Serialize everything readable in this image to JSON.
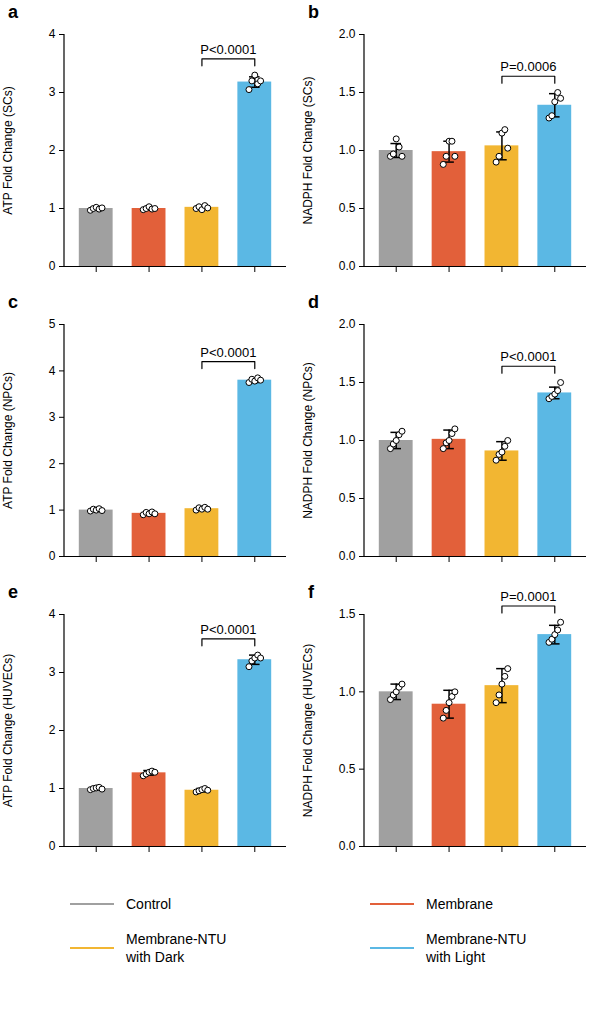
{
  "chart_data": [
    {
      "type": "bar",
      "title": "a",
      "ylabel": "ATP Fold Change (SCs)",
      "categories": [
        null,
        null,
        null,
        null
      ],
      "ylim": [
        0,
        4
      ],
      "yticks": [
        0,
        1,
        2,
        3,
        4
      ],
      "legend": "bottom",
      "series": [
        {
          "name": "Control",
          "color": "#a0a0a0",
          "values": [
            1.0,
            null,
            null,
            null
          ],
          "error": [
            0.02,
            null,
            null,
            null
          ],
          "points": [
            [
              0.97,
              1.0,
              1.02,
              0.99,
              1.01
            ],
            null,
            null,
            null
          ]
        },
        {
          "name": "Membrane",
          "color": "#e2603a",
          "values": [
            null,
            1.0,
            null,
            null
          ],
          "error": [
            null,
            0.02,
            null,
            null
          ],
          "points": [
            null,
            [
              0.98,
              1.0,
              1.03,
              0.99,
              1.0
            ],
            null,
            null
          ]
        },
        {
          "name": "Membrane-NTU with Dark",
          "color": "#f2b632",
          "values": [
            null,
            null,
            1.02,
            null
          ],
          "error": [
            null,
            null,
            0.03,
            null
          ],
          "points": [
            null,
            null,
            [
              1.0,
              1.03,
              0.98,
              1.05,
              1.01
            ],
            null
          ]
        },
        {
          "name": "Membrane-NTU with Light",
          "color": "#5bb8e4",
          "values": [
            null,
            null,
            null,
            3.18
          ],
          "error": [
            null,
            null,
            null,
            0.09
          ],
          "points": [
            null,
            null,
            null,
            [
              3.05,
              3.2,
              3.3,
              3.15,
              3.2
            ]
          ]
        }
      ],
      "annotations": [
        {
          "text": "P<0.0001",
          "between": [
            2,
            3
          ]
        }
      ]
    },
    {
      "type": "bar",
      "title": "b",
      "ylabel": "NADPH Fold Change (SCs)",
      "categories": [
        null,
        null,
        null,
        null
      ],
      "ylim": [
        0,
        2
      ],
      "yticks": [
        {
          "value": 0,
          "label": "0.0"
        },
        0.5,
        {
          "value": 1,
          "label": "1.0"
        },
        1.5,
        {
          "value": 2,
          "label": "2.0"
        }
      ],
      "legend": "bottom",
      "series": [
        {
          "name": "Control",
          "color": "#a0a0a0",
          "values": [
            1.0,
            null,
            null,
            null
          ],
          "error": [
            0.06,
            null,
            null,
            null
          ],
          "points": [
            [
              0.95,
              0.97,
              1.1,
              1.03,
              0.95
            ],
            null,
            null,
            null
          ]
        },
        {
          "name": "Membrane",
          "color": "#e2603a",
          "values": [
            null,
            0.99,
            null,
            null
          ],
          "error": [
            null,
            0.09,
            null,
            null
          ],
          "points": [
            null,
            [
              0.88,
              0.95,
              1.08,
              1.08,
              0.95
            ],
            null,
            null
          ]
        },
        {
          "name": "Membrane-NTU with Dark",
          "color": "#f2b632",
          "values": [
            null,
            null,
            1.04,
            null
          ],
          "error": [
            null,
            null,
            0.12,
            null
          ],
          "points": [
            null,
            null,
            [
              0.9,
              0.95,
              1.15,
              1.18,
              1.02
            ],
            null
          ]
        },
        {
          "name": "Membrane-NTU with Light",
          "color": "#5bb8e4",
          "values": [
            null,
            null,
            null,
            1.39
          ],
          "error": [
            null,
            null,
            null,
            0.1
          ],
          "points": [
            null,
            null,
            null,
            [
              1.28,
              1.3,
              1.42,
              1.5,
              1.45
            ]
          ]
        }
      ],
      "annotations": [
        {
          "text": "P=0.0006",
          "between": [
            2,
            3
          ]
        }
      ]
    },
    {
      "type": "bar",
      "title": "c",
      "ylabel": "ATP Fold Change (NPCs)",
      "categories": [
        null,
        null,
        null,
        null
      ],
      "ylim": [
        0,
        5
      ],
      "yticks": [
        0,
        1,
        2,
        3,
        4,
        5
      ],
      "legend": "bottom",
      "series": [
        {
          "name": "Control",
          "color": "#a0a0a0",
          "values": [
            1.0,
            null,
            null,
            null
          ],
          "error": [
            0.02,
            null,
            null,
            null
          ],
          "points": [
            [
              0.98,
              1.02,
              1.0,
              1.03,
              0.99
            ],
            null,
            null,
            null
          ]
        },
        {
          "name": "Membrane",
          "color": "#e2603a",
          "values": [
            null,
            0.93,
            null,
            null
          ],
          "error": [
            null,
            0.04,
            null,
            null
          ],
          "points": [
            null,
            [
              0.9,
              0.95,
              0.92,
              0.96,
              0.92
            ],
            null,
            null
          ]
        },
        {
          "name": "Membrane-NTU with Dark",
          "color": "#f2b632",
          "values": [
            null,
            null,
            1.03,
            null
          ],
          "error": [
            null,
            null,
            0.03,
            null
          ],
          "points": [
            null,
            null,
            [
              1.0,
              1.05,
              1.02,
              1.06,
              1.02
            ],
            null
          ]
        },
        {
          "name": "Membrane-NTU with Light",
          "color": "#5bb8e4",
          "values": [
            null,
            null,
            null,
            3.8
          ],
          "error": [
            null,
            null,
            null,
            0.05
          ],
          "points": [
            null,
            null,
            null,
            [
              3.75,
              3.82,
              3.78,
              3.85,
              3.8
            ]
          ]
        }
      ],
      "annotations": [
        {
          "text": "P<0.0001",
          "between": [
            2,
            3
          ]
        }
      ]
    },
    {
      "type": "bar",
      "title": "d",
      "ylabel": "NADPH Fold Change (NPCs)",
      "categories": [
        null,
        null,
        null,
        null
      ],
      "ylim": [
        0,
        2
      ],
      "yticks": [
        {
          "value": 0,
          "label": "0.0"
        },
        0.5,
        {
          "value": 1,
          "label": "1.0"
        },
        1.5,
        {
          "value": 2,
          "label": "2.0"
        }
      ],
      "legend": "bottom",
      "series": [
        {
          "name": "Control",
          "color": "#a0a0a0",
          "values": [
            1.0,
            null,
            null,
            null
          ],
          "error": [
            0.07,
            null,
            null,
            null
          ],
          "points": [
            [
              0.93,
              0.97,
              1.0,
              1.05,
              1.08
            ],
            null,
            null,
            null
          ]
        },
        {
          "name": "Membrane",
          "color": "#e2603a",
          "values": [
            null,
            1.01,
            null,
            null
          ],
          "error": [
            null,
            0.08,
            null,
            null
          ],
          "points": [
            null,
            [
              0.93,
              0.98,
              1.0,
              1.06,
              1.1
            ],
            null,
            null
          ]
        },
        {
          "name": "Membrane-NTU with Dark",
          "color": "#f2b632",
          "values": [
            null,
            null,
            0.91,
            null
          ],
          "error": [
            null,
            null,
            0.08,
            null
          ],
          "points": [
            null,
            null,
            [
              0.83,
              0.88,
              0.9,
              0.95,
              1.0
            ],
            null
          ]
        },
        {
          "name": "Membrane-NTU with Light",
          "color": "#5bb8e4",
          "values": [
            null,
            null,
            null,
            1.41
          ],
          "error": [
            null,
            null,
            null,
            0.05
          ],
          "points": [
            null,
            null,
            null,
            [
              1.36,
              1.38,
              1.4,
              1.43,
              1.5
            ]
          ]
        }
      ],
      "annotations": [
        {
          "text": "P<0.0001",
          "between": [
            2,
            3
          ]
        }
      ]
    },
    {
      "type": "bar",
      "title": "e",
      "ylabel": "ATP Fold Change (HUVECs)",
      "categories": [
        null,
        null,
        null,
        null
      ],
      "ylim": [
        0,
        4
      ],
      "yticks": [
        0,
        1,
        2,
        3,
        4
      ],
      "legend": "bottom",
      "series": [
        {
          "name": "Control",
          "color": "#a0a0a0",
          "values": [
            1.0,
            null,
            null,
            null
          ],
          "error": [
            0.02,
            null,
            null,
            null
          ],
          "points": [
            [
              0.98,
              1.0,
              1.01,
              1.02,
              0.99
            ],
            null,
            null,
            null
          ]
        },
        {
          "name": "Membrane",
          "color": "#e2603a",
          "values": [
            null,
            1.27,
            null,
            null
          ],
          "error": [
            null,
            0.04,
            null,
            null
          ],
          "points": [
            null,
            [
              1.22,
              1.25,
              1.28,
              1.3,
              1.28
            ],
            null,
            null
          ]
        },
        {
          "name": "Membrane-NTU with Dark",
          "color": "#f2b632",
          "values": [
            null,
            null,
            0.97,
            null
          ],
          "error": [
            null,
            null,
            0.03,
            null
          ],
          "points": [
            null,
            null,
            [
              0.94,
              0.96,
              0.98,
              1.0,
              0.97
            ],
            null
          ]
        },
        {
          "name": "Membrane-NTU with Light",
          "color": "#5bb8e4",
          "values": [
            null,
            null,
            null,
            3.22
          ],
          "error": [
            null,
            null,
            null,
            0.08
          ],
          "points": [
            null,
            null,
            null,
            [
              3.1,
              3.2,
              3.25,
              3.3,
              3.25
            ]
          ]
        }
      ],
      "annotations": [
        {
          "text": "P<0.0001",
          "between": [
            2,
            3
          ]
        }
      ]
    },
    {
      "type": "bar",
      "title": "f",
      "ylabel": "NADPH Fold Change (HUVECs)",
      "categories": [
        null,
        null,
        null,
        null
      ],
      "ylim": [
        0,
        1.5
      ],
      "yticks": [
        {
          "value": 0,
          "label": "0.0"
        },
        0.5,
        {
          "value": 1,
          "label": "1.0"
        },
        1.5
      ],
      "legend": "bottom",
      "series": [
        {
          "name": "Control",
          "color": "#a0a0a0",
          "values": [
            1.0,
            null,
            null,
            null
          ],
          "error": [
            0.05,
            null,
            null,
            null
          ],
          "points": [
            [
              0.95,
              0.98,
              1.0,
              1.03,
              1.05
            ],
            null,
            null,
            null
          ]
        },
        {
          "name": "Membrane",
          "color": "#e2603a",
          "values": [
            null,
            0.92,
            null,
            null
          ],
          "error": [
            null,
            0.09,
            null,
            null
          ],
          "points": [
            null,
            [
              0.83,
              0.88,
              0.93,
              0.97,
              1.0
            ],
            null,
            null
          ]
        },
        {
          "name": "Membrane-NTU with Dark",
          "color": "#f2b632",
          "values": [
            null,
            null,
            1.04,
            null
          ],
          "error": [
            null,
            null,
            0.11,
            null
          ],
          "points": [
            null,
            null,
            [
              0.93,
              0.98,
              1.05,
              1.1,
              1.15
            ],
            null
          ]
        },
        {
          "name": "Membrane-NTU with Light",
          "color": "#5bb8e4",
          "values": [
            null,
            null,
            null,
            1.37
          ],
          "error": [
            null,
            null,
            null,
            0.06
          ],
          "points": [
            null,
            null,
            null,
            [
              1.32,
              1.34,
              1.37,
              1.4,
              1.45
            ]
          ]
        }
      ],
      "annotations": [
        {
          "text": "P=0.0001",
          "between": [
            2,
            3
          ]
        }
      ]
    }
  ]
}
